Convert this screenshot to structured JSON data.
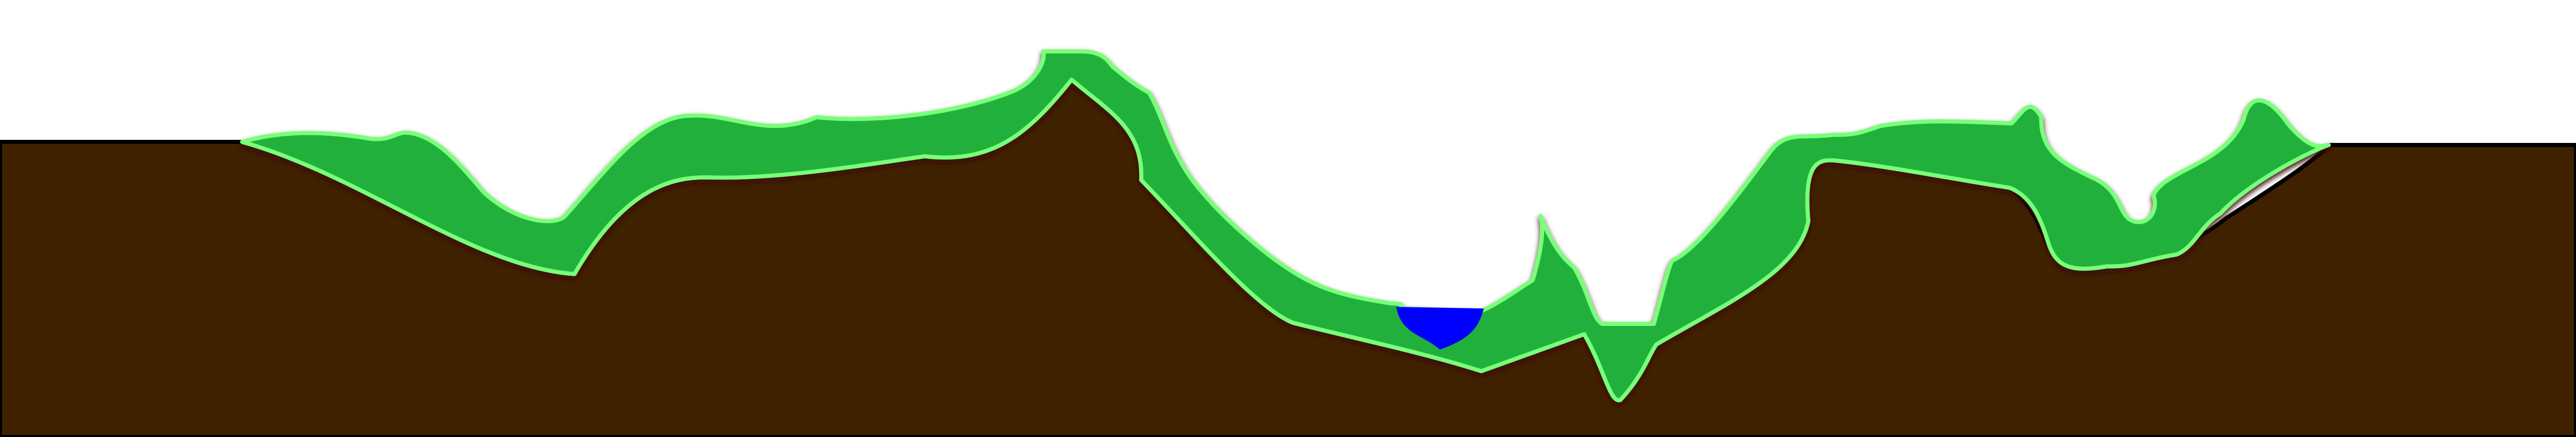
{
  "scene": {
    "colors": {
      "sky": "#ffffff",
      "ground": "#3f2100",
      "ground_edge": "#000000",
      "hill_fill": "#24b03c",
      "hill_highlight": "#79ff79",
      "hill_shadow": "#3b0707",
      "water": "#0000ff"
    },
    "icons": {
      "ground": "brown-soil-terrain",
      "hills": "green-hill-platform",
      "water": "blue-water-pool"
    }
  }
}
